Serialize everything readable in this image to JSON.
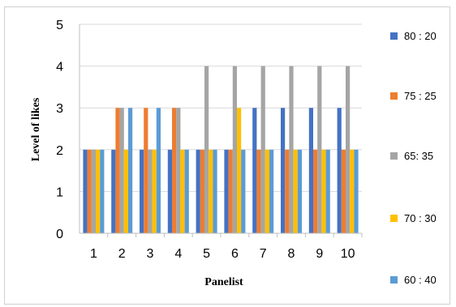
{
  "chart_data": {
    "type": "bar",
    "xlabel": "Panelist",
    "ylabel": "Level of  likes",
    "categories": [
      "1",
      "2",
      "3",
      "4",
      "5",
      "6",
      "7",
      "8",
      "9",
      "10"
    ],
    "ylim": [
      0,
      5
    ],
    "yticks": [
      "0",
      "1",
      "2",
      "3",
      "4",
      "5"
    ],
    "grid": "horizontal",
    "legend_placement": "right",
    "series": [
      {
        "name": "80 : 20",
        "color": "#4472c4",
        "values": [
          2,
          2,
          2,
          2,
          2,
          2,
          3,
          3,
          3,
          3
        ]
      },
      {
        "name": "75 : 25",
        "color": "#ed7d31",
        "values": [
          2,
          3,
          3,
          3,
          2,
          2,
          2,
          2,
          2,
          2
        ]
      },
      {
        "name": "65: 35",
        "color": "#a5a5a5",
        "values": [
          2,
          3,
          2,
          3,
          4,
          4,
          4,
          4,
          4,
          4
        ]
      },
      {
        "name": "70 : 30",
        "color": "#ffc000",
        "values": [
          2,
          2,
          2,
          2,
          2,
          3,
          2,
          2,
          2,
          2
        ]
      },
      {
        "name": "60 : 40",
        "color": "#5b9bd5",
        "values": [
          2,
          3,
          3,
          2,
          2,
          2,
          2,
          2,
          2,
          2
        ]
      }
    ]
  }
}
